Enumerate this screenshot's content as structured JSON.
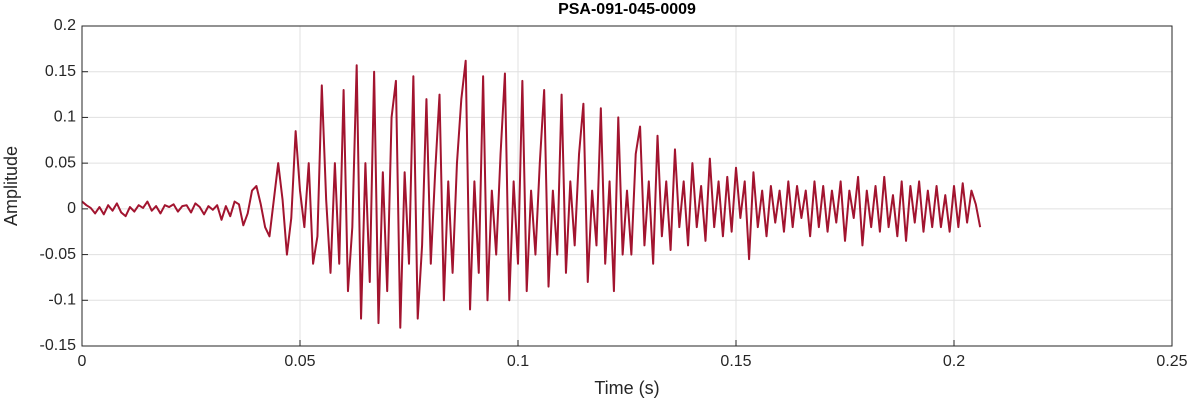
{
  "chart_data": {
    "type": "line",
    "title": "PSA-091-045-0009",
    "xlabel": "Time (s)",
    "ylabel": "Amplitude",
    "x": [
      0,
      0.001,
      0.002,
      0.003,
      0.004,
      0.005,
      0.006,
      0.007,
      0.008,
      0.009,
      0.01,
      0.011,
      0.012,
      0.013,
      0.014,
      0.015,
      0.016,
      0.017,
      0.018,
      0.019,
      0.02,
      0.021,
      0.022,
      0.023,
      0.024,
      0.025,
      0.026,
      0.027,
      0.028,
      0.029,
      0.03,
      0.031,
      0.032,
      0.033,
      0.034,
      0.035,
      0.036,
      0.037,
      0.038,
      0.039,
      0.04,
      0.041,
      0.042,
      0.043,
      0.044,
      0.045,
      0.046,
      0.047,
      0.048,
      0.049,
      0.05,
      0.051,
      0.052,
      0.053,
      0.054,
      0.055,
      0.056,
      0.057,
      0.058,
      0.059,
      0.06,
      0.061,
      0.062,
      0.063,
      0.064,
      0.065,
      0.066,
      0.067,
      0.068,
      0.069,
      0.07,
      0.071,
      0.072,
      0.073,
      0.074,
      0.075,
      0.076,
      0.077,
      0.078,
      0.079,
      0.08,
      0.081,
      0.082,
      0.083,
      0.084,
      0.085,
      0.086,
      0.087,
      0.088,
      0.089,
      0.09,
      0.091,
      0.092,
      0.093,
      0.094,
      0.095,
      0.096,
      0.097,
      0.098,
      0.099,
      0.1,
      0.101,
      0.102,
      0.103,
      0.104,
      0.105,
      0.106,
      0.107,
      0.108,
      0.109,
      0.11,
      0.111,
      0.112,
      0.113,
      0.114,
      0.115,
      0.116,
      0.117,
      0.118,
      0.119,
      0.12,
      0.121,
      0.122,
      0.123,
      0.124,
      0.125,
      0.126,
      0.127,
      0.128,
      0.129,
      0.13,
      0.131,
      0.132,
      0.133,
      0.134,
      0.135,
      0.136,
      0.137,
      0.138,
      0.139,
      0.14,
      0.141,
      0.142,
      0.143,
      0.144,
      0.145,
      0.146,
      0.147,
      0.148,
      0.149,
      0.15,
      0.151,
      0.152,
      0.153,
      0.154,
      0.155,
      0.156,
      0.157,
      0.158,
      0.159,
      0.16,
      0.161,
      0.162,
      0.163,
      0.164,
      0.165,
      0.166,
      0.167,
      0.168,
      0.169,
      0.17,
      0.171,
      0.172,
      0.173,
      0.174,
      0.175,
      0.176,
      0.177,
      0.178,
      0.179,
      0.18,
      0.181,
      0.182,
      0.183,
      0.184,
      0.185,
      0.186,
      0.187,
      0.188,
      0.189,
      0.19,
      0.191,
      0.192,
      0.193,
      0.194,
      0.195,
      0.196,
      0.197,
      0.198,
      0.199,
      0.2,
      0.201,
      0.202,
      0.203,
      0.204,
      0.205,
      0.206
    ],
    "series": [
      {
        "color": "#a2142f",
        "values": [
          0.008,
          0.004,
          0.001,
          -0.005,
          0.002,
          -0.006,
          0.004,
          -0.002,
          0.006,
          -0.004,
          -0.008,
          0.002,
          -0.003,
          0.004,
          0.001,
          0.008,
          -0.002,
          0.003,
          -0.005,
          0.004,
          0.002,
          0.005,
          -0.003,
          0.003,
          0.004,
          -0.004,
          0.006,
          0.002,
          -0.006,
          0.003,
          -0.001,
          0.004,
          -0.012,
          0.003,
          -0.008,
          0.008,
          0.005,
          -0.018,
          -0.005,
          0.02,
          0.025,
          0.005,
          -0.02,
          -0.03,
          0.01,
          0.05,
          0.01,
          -0.05,
          -0.01,
          0.085,
          0.02,
          -0.02,
          0.05,
          -0.06,
          -0.03,
          0.135,
          0.01,
          -0.07,
          0.05,
          -0.06,
          0.13,
          -0.09,
          -0.02,
          0.157,
          -0.12,
          0.05,
          -0.08,
          0.15,
          -0.125,
          0.04,
          -0.09,
          0.1,
          0.14,
          -0.13,
          0.04,
          -0.06,
          0.145,
          -0.12,
          -0.04,
          0.12,
          -0.06,
          0.04,
          0.125,
          -0.1,
          0.03,
          -0.07,
          0.05,
          0.12,
          0.162,
          -0.11,
          0.03,
          -0.07,
          0.145,
          -0.1,
          0.02,
          -0.05,
          0.06,
          0.148,
          -0.1,
          0.03,
          -0.06,
          0.14,
          -0.09,
          0.02,
          -0.05,
          0.05,
          0.13,
          -0.085,
          0.02,
          -0.05,
          0.125,
          -0.07,
          0.03,
          -0.04,
          0.06,
          0.115,
          -0.08,
          0.02,
          -0.04,
          0.11,
          -0.06,
          0.03,
          -0.09,
          0.1,
          -0.05,
          0.02,
          -0.05,
          0.06,
          0.09,
          -0.04,
          0.03,
          -0.06,
          0.08,
          -0.03,
          0.03,
          -0.045,
          0.065,
          -0.02,
          0.03,
          -0.04,
          0.05,
          -0.02,
          0.025,
          -0.035,
          0.055,
          -0.02,
          0.03,
          -0.03,
          0.035,
          -0.025,
          0.045,
          -0.01,
          0.03,
          -0.055,
          0.04,
          -0.02,
          0.02,
          -0.03,
          0.025,
          -0.015,
          0.02,
          -0.025,
          0.03,
          -0.02,
          0.025,
          -0.01,
          0.02,
          -0.03,
          0.03,
          -0.02,
          0.025,
          -0.025,
          0.02,
          -0.015,
          0.03,
          -0.035,
          0.02,
          -0.01,
          0.035,
          -0.04,
          0.02,
          -0.02,
          0.025,
          -0.025,
          0.035,
          -0.02,
          0.015,
          -0.03,
          0.03,
          -0.035,
          0.025,
          -0.015,
          0.03,
          -0.025,
          0.02,
          -0.02,
          0.025,
          -0.02,
          0.015,
          -0.025,
          0.025,
          -0.02,
          0.028,
          -0.015,
          0.02,
          0.005,
          -0.02
        ]
      }
    ],
    "xlim": [
      0,
      0.25
    ],
    "xticks": [
      0,
      0.05,
      0.1,
      0.15,
      0.2,
      0.25
    ],
    "ylim": [
      -0.15,
      0.2
    ],
    "yticks": [
      -0.15,
      -0.1,
      -0.05,
      0,
      0.05,
      0.1,
      0.15,
      0.2
    ],
    "grid": true
  }
}
